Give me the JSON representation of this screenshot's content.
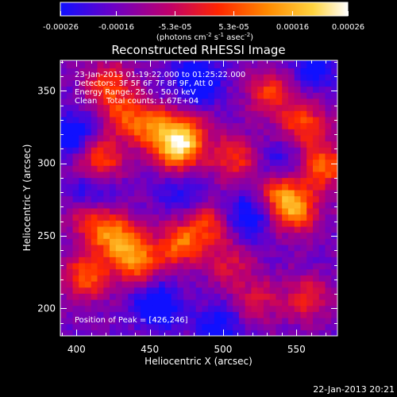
{
  "colorbar": {
    "tick_labels": [
      "-0.00026",
      "-0.00016",
      "-5.3e-05",
      "5.3e-05",
      "0.00016",
      "0.00026"
    ],
    "tick_values": [
      -0.00026,
      -0.00016,
      -5.3e-05,
      5.3e-05,
      0.00016,
      0.00026
    ],
    "range": [
      -0.00026,
      0.00026
    ],
    "units_prefix": "(photons cm",
    "units_exp1": "-2",
    "units_mid": " s",
    "units_exp2": "-1",
    "units_mid2": " asec",
    "units_exp3": "-2",
    "units_suffix": ")",
    "colors": [
      "#1010ff",
      "#6a00c8",
      "#c0006a",
      "#ff2600",
      "#ff8a00",
      "#ffd440",
      "#ffffff"
    ]
  },
  "chart_data": {
    "type": "heatmap",
    "title": "Reconstructed RHESSI Image",
    "xlabel": "Heliocentric X (arcsec)",
    "ylabel": "Heliocentric Y (arcsec)",
    "xlim": [
      389,
      578
    ],
    "ylim": [
      181,
      371
    ],
    "x_ticks": [
      400,
      450,
      500,
      550
    ],
    "y_ticks": [
      200,
      250,
      300,
      350
    ],
    "annotations": {
      "time_range": "23-Jan-2013 01:19:22.000 to 01:25:22.000",
      "detectors": "Detectors: 3F 5F 6F 7F 8F 9F, Att 0",
      "energy": "Energy Range: 25.0 - 50.0 keV",
      "method": "Clean",
      "counts": "Total counts: 1.67E+04",
      "peak": "Position of Peak = [426,246]"
    },
    "peak_position": [
      426,
      246
    ],
    "intensity_range": [
      -0.00026,
      0.00026
    ],
    "bright_regions": [
      {
        "x": 420,
        "y": 352,
        "level": 0.75
      },
      {
        "x": 432,
        "y": 330,
        "level": 0.7
      },
      {
        "x": 414,
        "y": 300,
        "level": 0.85
      },
      {
        "x": 452,
        "y": 322,
        "level": 0.8
      },
      {
        "x": 467,
        "y": 305,
        "level": 0.9
      },
      {
        "x": 472,
        "y": 318,
        "level": 0.85
      },
      {
        "x": 530,
        "y": 347,
        "level": 0.7
      },
      {
        "x": 553,
        "y": 325,
        "level": 0.8
      },
      {
        "x": 566,
        "y": 296,
        "level": 0.9
      },
      {
        "x": 538,
        "y": 276,
        "level": 0.85
      },
      {
        "x": 548,
        "y": 265,
        "level": 0.8
      },
      {
        "x": 505,
        "y": 302,
        "level": 0.7
      },
      {
        "x": 426,
        "y": 246,
        "level": 1.0
      },
      {
        "x": 440,
        "y": 230,
        "level": 0.9
      },
      {
        "x": 405,
        "y": 220,
        "level": 0.85
      },
      {
        "x": 468,
        "y": 242,
        "level": 0.85
      },
      {
        "x": 488,
        "y": 255,
        "level": 0.65
      },
      {
        "x": 408,
        "y": 260,
        "level": 0.7
      },
      {
        "x": 555,
        "y": 205,
        "level": 0.6
      },
      {
        "x": 502,
        "y": 228,
        "level": 0.5
      },
      {
        "x": 521,
        "y": 203,
        "level": 0.5
      }
    ],
    "dark_regions": [
      {
        "x": 480,
        "y": 355,
        "level": -0.7
      },
      {
        "x": 395,
        "y": 318,
        "level": -0.6
      },
      {
        "x": 410,
        "y": 278,
        "level": -0.55
      },
      {
        "x": 515,
        "y": 262,
        "level": -0.6
      },
      {
        "x": 452,
        "y": 200,
        "level": -0.65
      },
      {
        "x": 495,
        "y": 185,
        "level": -0.5
      },
      {
        "x": 560,
        "y": 365,
        "level": -0.5
      },
      {
        "x": 540,
        "y": 300,
        "level": -0.35
      },
      {
        "x": 470,
        "y": 280,
        "level": -0.4
      }
    ]
  },
  "footer": {
    "date": "22-Jan-2013 20:21"
  }
}
